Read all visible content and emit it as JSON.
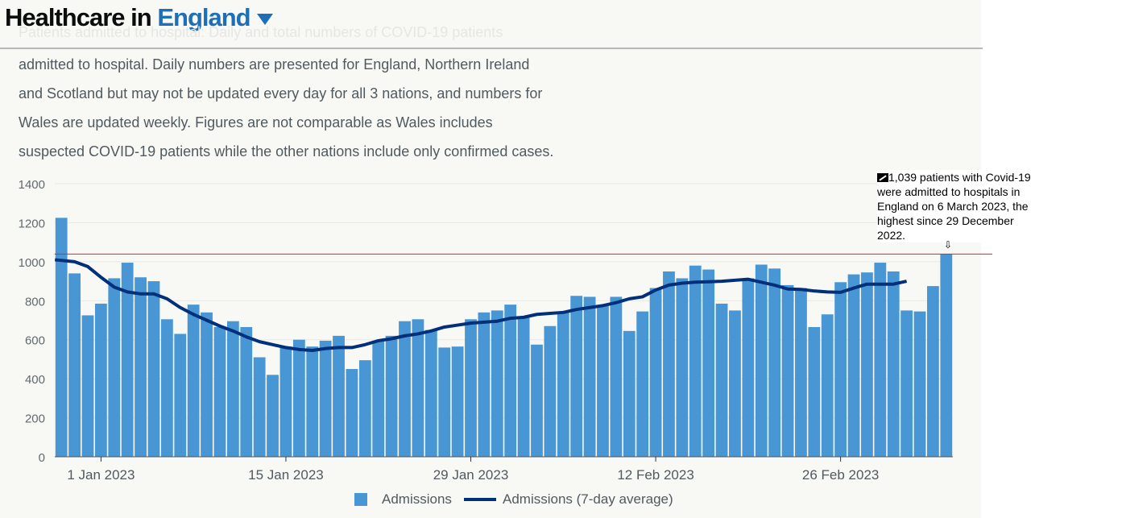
{
  "header": {
    "title_prefix": "Healthcare in",
    "nation": "England"
  },
  "description": {
    "hidden_line": "Patients admitted to hospital: Daily and total numbers of COVID-19 patients",
    "lines": [
      "admitted to hospital.  Daily numbers are presented for England, Northern Ireland",
      "and Scotland but may not be updated every day for all 3 nations, and numbers for",
      "Wales are updated weekly.   Figures are not comparable as Wales includes",
      "suspected COVID-19 patients while the other nations include only confirmed cases."
    ]
  },
  "annotation": {
    "text": "1,039 patients with Covid-19 were admitted to hospitals in England on 6 March 2023, the highest since 29 December 2022.",
    "icon": "chart-line-icon",
    "arrow": "⇩"
  },
  "chart_data": {
    "type": "bar",
    "x_start": "2022-12-29",
    "x_end": "2023-03-06",
    "ylim": [
      0,
      1400
    ],
    "yticks": [
      0,
      200,
      400,
      600,
      800,
      1000,
      1200,
      1400
    ],
    "xticks": [
      {
        "label": "1 Jan 2023",
        "date": "2023-01-01"
      },
      {
        "label": "15 Jan 2023",
        "date": "2023-01-15"
      },
      {
        "label": "29 Jan 2023",
        "date": "2023-01-29"
      },
      {
        "label": "12 Feb 2023",
        "date": "2023-02-12"
      },
      {
        "label": "26 Feb 2023",
        "date": "2023-02-26"
      }
    ],
    "grid": true,
    "legend_position": "bottom",
    "reference_line": {
      "value": 1039,
      "color": "#ee1c25"
    },
    "series": [
      {
        "name": "Admissions",
        "type": "bar",
        "color": "#4897d4",
        "values": [
          1225,
          940,
          725,
          785,
          915,
          995,
          920,
          900,
          705,
          630,
          780,
          740,
          665,
          695,
          665,
          510,
          420,
          565,
          600,
          565,
          595,
          620,
          450,
          495,
          595,
          620,
          695,
          705,
          650,
          560,
          565,
          705,
          740,
          750,
          780,
          720,
          575,
          670,
          745,
          825,
          820,
          775,
          820,
          645,
          745,
          865,
          950,
          915,
          980,
          960,
          785,
          750,
          915,
          985,
          965,
          880,
          865,
          665,
          730,
          895,
          935,
          945,
          995,
          950,
          750,
          745,
          875,
          1039
        ]
      },
      {
        "name": "Admissions (7-day average)",
        "type": "line",
        "color": "#00307a",
        "values": [
          1010,
          1000,
          975,
          920,
          870,
          845,
          835,
          835,
          810,
          765,
          730,
          700,
          670,
          645,
          615,
          590,
          575,
          560,
          550,
          545,
          555,
          560,
          560,
          575,
          595,
          605,
          620,
          630,
          645,
          665,
          675,
          685,
          690,
          695,
          710,
          715,
          730,
          735,
          740,
          755,
          765,
          775,
          790,
          810,
          820,
          855,
          880,
          890,
          895,
          897,
          900,
          905,
          910,
          895,
          880,
          860,
          858,
          850,
          845,
          843,
          865,
          885,
          885,
          885,
          900,
          null,
          null,
          null
        ]
      }
    ]
  }
}
